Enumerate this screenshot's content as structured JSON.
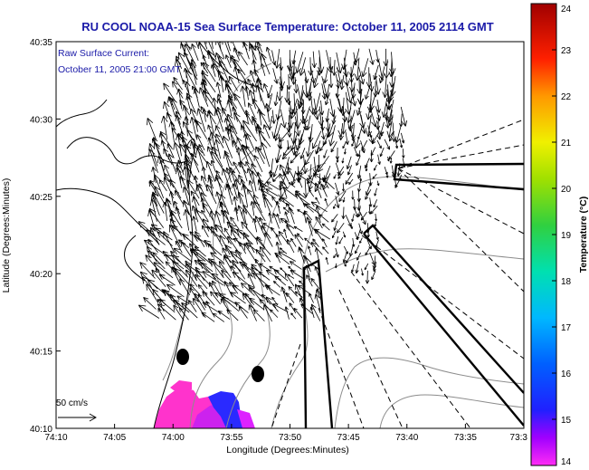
{
  "title": "RU COOL  NOAA-15  Sea Surface Temperature:  October 11, 2005 2114 GMT",
  "annotation": {
    "line1": "Raw Surface Current:",
    "line2": "October 11, 2005 21:00 GMT"
  },
  "scale_label": "50 cm/s",
  "colors": {
    "title": "#1a1aa8",
    "coast": "#000000",
    "contour": "#8c8c8c",
    "sst_pink": "#ff33cc",
    "sst_magenta": "#cc22ee",
    "sst_blue": "#2a2aff"
  },
  "chart_data": {
    "type": "map",
    "xlabel": "Longitude (Degrees:Minutes)",
    "ylabel": "Latitude (Degrees:Minutes)",
    "x_ticks": [
      "74:10",
      "74:05",
      "74:00",
      "73:55",
      "73:50",
      "73:45",
      "73:40",
      "73:35",
      "73:3"
    ],
    "y_ticks": [
      "40:10",
      "40:15",
      "40:20",
      "40:25",
      "40:30",
      "40:35"
    ],
    "xlim_minutes_west": [
      70,
      30
    ],
    "ylim_minutes_north": [
      10,
      35
    ],
    "colorbar": {
      "label": "Temperature (°C)",
      "ticks": [
        "14",
        "15",
        "16",
        "17",
        "18",
        "19",
        "20",
        "21",
        "22",
        "23",
        "24"
      ],
      "range": [
        14,
        24
      ]
    },
    "markers": [
      {
        "lon_min": 59,
        "lat_min": 14.5
      },
      {
        "lon_min": 52.3,
        "lat_min": 13.5
      }
    ]
  }
}
